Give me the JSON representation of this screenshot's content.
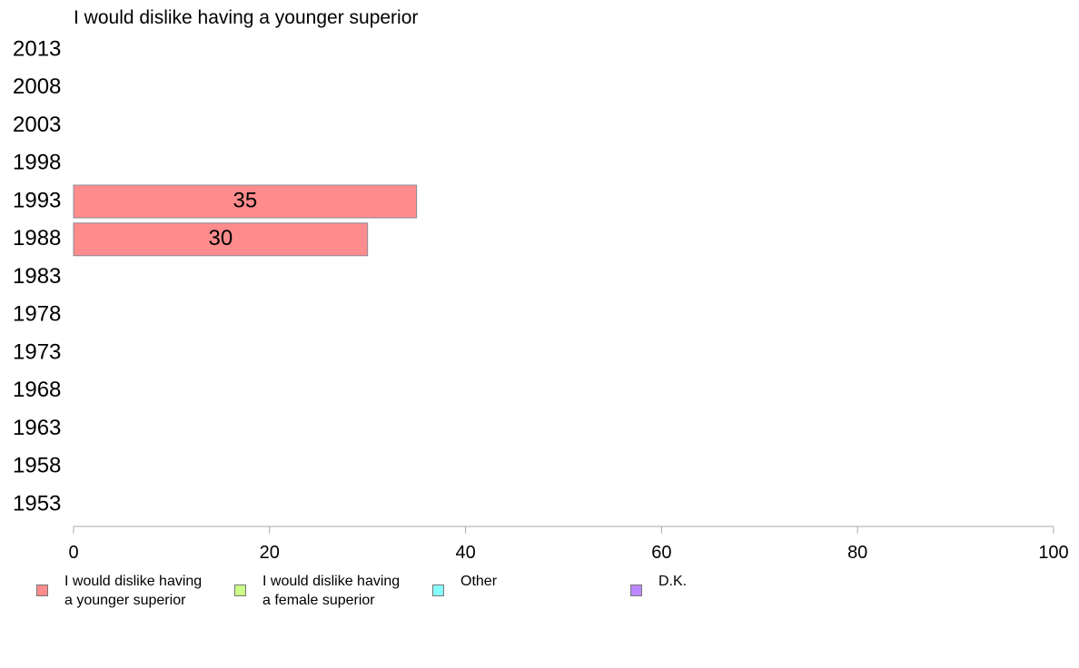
{
  "chart_data": {
    "type": "bar",
    "orientation": "horizontal",
    "title": "I would dislike having a younger superior",
    "categories": [
      "2013",
      "2008",
      "2003",
      "1998",
      "1993",
      "1988",
      "1983",
      "1978",
      "1973",
      "1968",
      "1963",
      "1958",
      "1953"
    ],
    "series": [
      {
        "name": "I would dislike having a younger superior",
        "color": "#ff8c8c",
        "values": [
          null,
          null,
          null,
          null,
          35,
          30,
          null,
          null,
          null,
          null,
          null,
          null,
          null
        ]
      },
      {
        "name": "I would dislike having a female superior",
        "color": "#ccff88",
        "values": [
          null,
          null,
          null,
          null,
          null,
          null,
          null,
          null,
          null,
          null,
          null,
          null,
          null
        ]
      },
      {
        "name": "Other",
        "color": "#88ffff",
        "values": [
          null,
          null,
          null,
          null,
          null,
          null,
          null,
          null,
          null,
          null,
          null,
          null,
          null
        ]
      },
      {
        "name": "D.K.",
        "color": "#bb88ff",
        "values": [
          null,
          null,
          null,
          null,
          null,
          null,
          null,
          null,
          null,
          null,
          null,
          null,
          null
        ]
      }
    ],
    "data_labels": [
      null,
      null,
      null,
      null,
      "35",
      "30",
      null,
      null,
      null,
      null,
      null,
      null,
      null
    ],
    "xlim": [
      0,
      100
    ],
    "xticks": [
      "0",
      "20",
      "40",
      "60",
      "80",
      "100"
    ],
    "grid": false,
    "legend_position": "bottom"
  },
  "legend": [
    {
      "label": "I would dislike having\na younger superior",
      "color": "#ff8c8c"
    },
    {
      "label": "I would dislike having\na female superior",
      "color": "#ccff88"
    },
    {
      "label": "Other",
      "color": "#88ffff"
    },
    {
      "label": "D.K.",
      "color": "#bb88ff"
    }
  ]
}
